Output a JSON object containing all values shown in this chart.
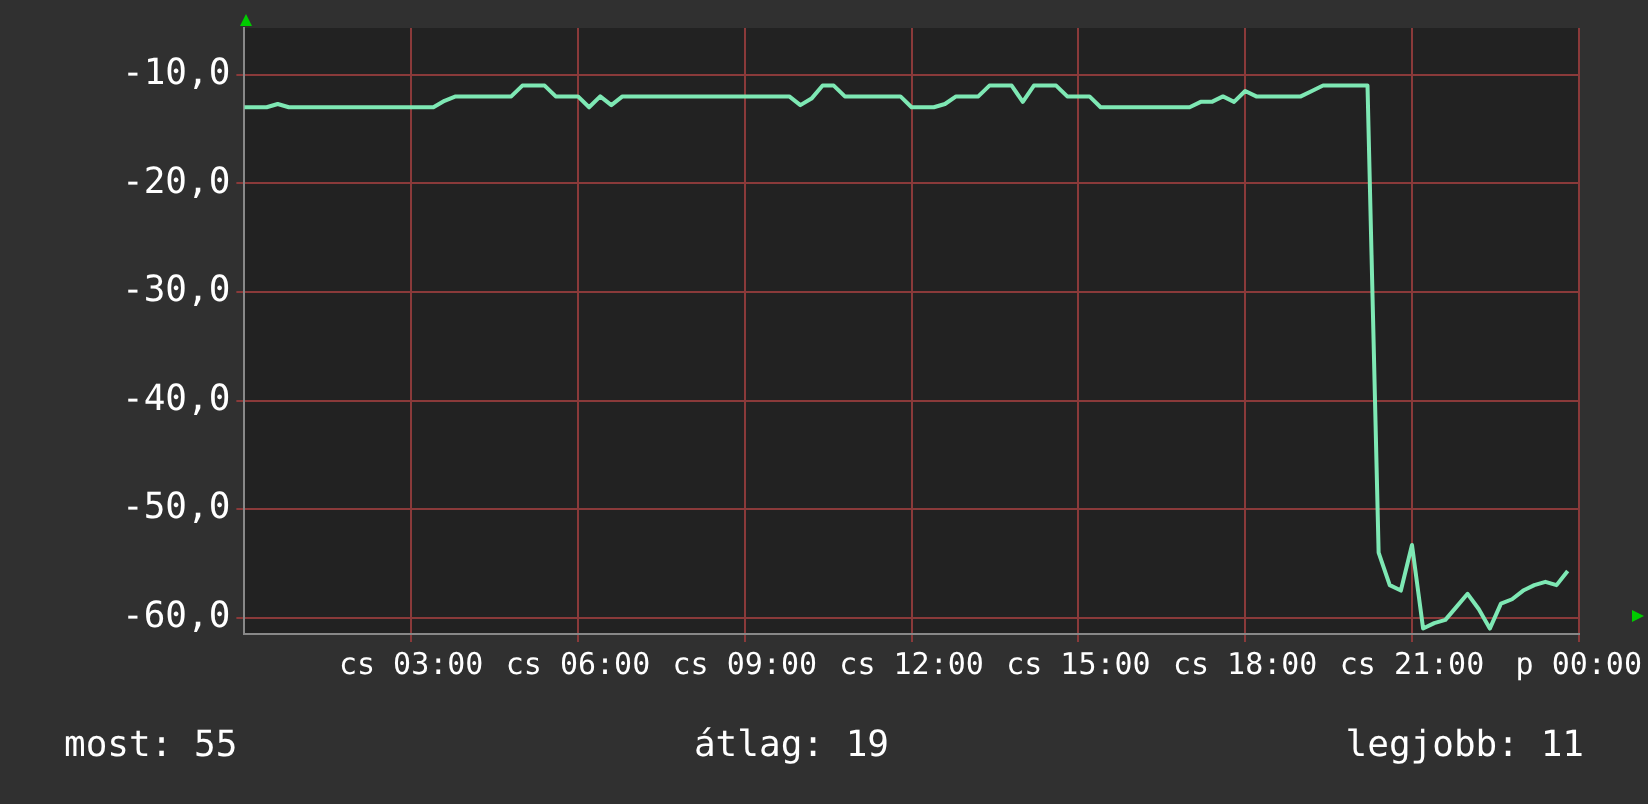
{
  "chart_data": {
    "type": "line",
    "categories": [
      null,
      null,
      null,
      null,
      null,
      null,
      null,
      null,
      null,
      null,
      null,
      null,
      null,
      null,
      null,
      "cs 03:00",
      null,
      null,
      null,
      null,
      null,
      null,
      null,
      null,
      null,
      null,
      null,
      null,
      null,
      null,
      "cs 06:00",
      null,
      null,
      null,
      null,
      null,
      null,
      null,
      null,
      null,
      null,
      null,
      null,
      null,
      null,
      "cs 09:00",
      null,
      null,
      null,
      null,
      null,
      null,
      null,
      null,
      null,
      null,
      null,
      null,
      null,
      null,
      "cs 12:00",
      null,
      null,
      null,
      null,
      null,
      null,
      null,
      null,
      null,
      null,
      null,
      null,
      null,
      null,
      "cs 15:00",
      null,
      null,
      null,
      null,
      null,
      null,
      null,
      null,
      null,
      null,
      null,
      null,
      null,
      null,
      "cs 18:00",
      null,
      null,
      null,
      null,
      null,
      null,
      null,
      null,
      null,
      null,
      null,
      null,
      null,
      null,
      "cs 21:00",
      null,
      null,
      null,
      null,
      null,
      null,
      null,
      null,
      null,
      null,
      null,
      null,
      null,
      null,
      "p 00:00"
    ],
    "series": [
      {
        "color": "#7ee8b4",
        "values": [
          -13,
          -13,
          -13,
          -12.7,
          -13,
          -13,
          -13,
          -13,
          -13,
          -13,
          -13,
          -13,
          -13,
          -13,
          -13,
          -13,
          -13,
          -13,
          -12.4,
          -12,
          -12,
          -12,
          -12,
          -12,
          -12,
          -11,
          -11,
          -11,
          -12,
          -12,
          -12,
          -13,
          -12,
          -12.8,
          -12,
          -12,
          -12,
          -12,
          -12,
          -12,
          -12,
          -12,
          -12,
          -12,
          -12,
          -12,
          -12,
          -12,
          -12,
          -12,
          -12.8,
          -12.2,
          -11,
          -11,
          -12,
          -12,
          -12,
          -12,
          -12,
          -12,
          -13,
          -13,
          -13,
          -12.7,
          -12,
          -12,
          -12,
          -11,
          -11,
          -11,
          -12.5,
          -11,
          -11,
          -11,
          -12,
          -12,
          -12,
          -13,
          -13,
          -13,
          -13,
          -13,
          -13,
          -13,
          -13,
          -13,
          -12.5,
          -12.5,
          -12,
          -12.5,
          -11.5,
          -12,
          -12,
          -12,
          -12,
          -12,
          -11.5,
          -11,
          -11,
          -11,
          -11,
          -11,
          -54,
          -57,
          -57.5,
          -53.3,
          -61,
          -60.5,
          -60.2,
          -59,
          -57.8,
          -59.2,
          -61,
          -58.7,
          -58.3,
          -57.5,
          -57,
          -56.7,
          -57,
          -55.7,
          null
        ]
      }
    ],
    "ylim": [
      -61.5,
      -5.7
    ],
    "yticks": [
      {
        "value": -60,
        "label": "-60,0"
      },
      {
        "value": -50,
        "label": "-50,0"
      },
      {
        "value": -40,
        "label": "-40,0"
      },
      {
        "value": -30,
        "label": "-30,0"
      },
      {
        "value": -20,
        "label": "-20,0"
      },
      {
        "value": -10,
        "label": "-10,0"
      }
    ],
    "grid": true,
    "marker": "none",
    "line_style": "solid",
    "annotations": [
      "most: 55",
      "átlag: 19",
      "legjobb: 11"
    ]
  }
}
